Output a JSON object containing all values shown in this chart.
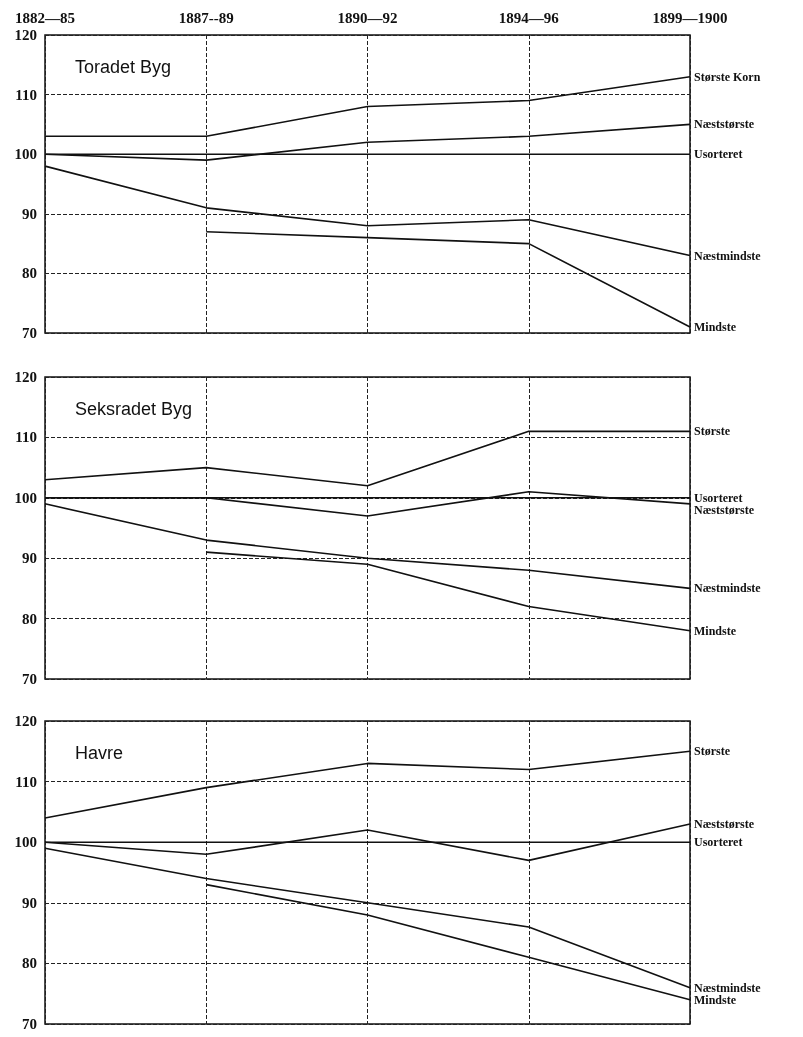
{
  "chart_data": [
    {
      "type": "line",
      "title": "Toradet Byg",
      "categories": [
        "1882—85",
        "1887--89",
        "1890—92",
        "1894—96",
        "1899—1900"
      ],
      "ylim": [
        70,
        120
      ],
      "yticks": [
        70,
        80,
        90,
        100,
        110,
        120
      ],
      "grid": true,
      "legend": false,
      "marker": "none",
      "line_style": "solid",
      "series": [
        {
          "name": "Største Korn",
          "color": "#111111",
          "values": [
            103,
            103,
            108,
            109,
            113
          ]
        },
        {
          "name": "Næststørste",
          "color": "#111111",
          "values": [
            100,
            99,
            102,
            103,
            105
          ]
        },
        {
          "name": "Usorteret",
          "color": "#111111",
          "values": [
            100,
            100,
            100,
            100,
            100
          ]
        },
        {
          "name": "Næstmindste",
          "color": "#111111",
          "values": [
            98,
            91,
            88,
            89,
            83
          ]
        },
        {
          "name": "Mindste",
          "color": "#111111",
          "values": [
            null,
            87,
            86,
            85,
            71
          ]
        }
      ]
    },
    {
      "type": "line",
      "title": "Seksradet Byg",
      "categories": [
        null,
        null,
        null,
        null,
        null
      ],
      "ylim": [
        70,
        120
      ],
      "yticks": [
        70,
        80,
        90,
        100,
        110,
        120
      ],
      "grid": true,
      "legend": false,
      "marker": "none",
      "line_style": "solid",
      "tick_labels": "y",
      "series": [
        {
          "name": "Største",
          "color": "#111111",
          "values": [
            103,
            105,
            102,
            111,
            111
          ]
        },
        {
          "name": "Usorteret",
          "color": "#111111",
          "values": [
            100,
            100,
            100,
            100,
            100
          ]
        },
        {
          "name": "Næststørste",
          "color": "#111111",
          "values": [
            100,
            100,
            97,
            101,
            99
          ]
        },
        {
          "name": "Næstmindste",
          "color": "#111111",
          "values": [
            99,
            93,
            90,
            88,
            85
          ]
        },
        {
          "name": "Mindste",
          "color": "#111111",
          "values": [
            null,
            91,
            89,
            82,
            78
          ]
        }
      ]
    },
    {
      "type": "line",
      "title": "Havre",
      "categories": [
        null,
        null,
        null,
        null,
        null
      ],
      "ylim": [
        70,
        120
      ],
      "yticks": [
        70,
        80,
        90,
        100,
        110,
        120
      ],
      "grid": true,
      "legend": false,
      "marker": "none",
      "line_style": "solid",
      "tick_labels": "y",
      "series": [
        {
          "name": "Største",
          "color": "#111111",
          "values": [
            104,
            109,
            113,
            112,
            115
          ]
        },
        {
          "name": "Næststørste",
          "color": "#111111",
          "values": [
            100,
            98,
            102,
            97,
            103
          ]
        },
        {
          "name": "Usorteret",
          "color": "#111111",
          "values": [
            100,
            100,
            100,
            100,
            100
          ]
        },
        {
          "name": "Næstmindste",
          "color": "#111111",
          "values": [
            99,
            94,
            90,
            86,
            76
          ]
        },
        {
          "name": "Mindste",
          "color": "#111111",
          "values": [
            null,
            93,
            88,
            81,
            74
          ]
        }
      ]
    }
  ]
}
